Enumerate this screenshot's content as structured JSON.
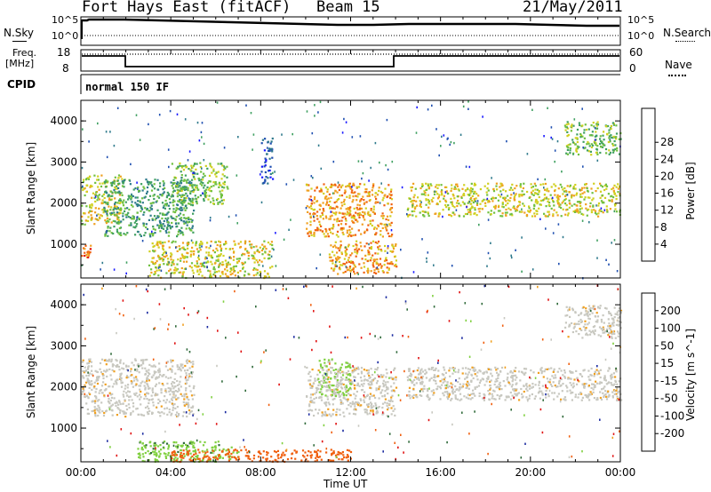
{
  "header": {
    "station": "Fort Hays East (fitACF)",
    "beam": "Beam 15",
    "date": "21/May/2011"
  },
  "top_panels": {
    "nsky_label": "N.Sky",
    "nsky_ticks": [
      "10^5",
      "10^0"
    ],
    "nsearch_label": "N.Search",
    "nsearch_ticks": [
      "10^5",
      "10^0"
    ],
    "freq_label_line1": "Freq.",
    "freq_label_line2": "[MHz]",
    "freq_ticks": [
      "18",
      "8"
    ],
    "nave_label": "Nave",
    "nave_ticks": [
      "60",
      "0"
    ],
    "cpid_label": "CPID",
    "cpid_value": "normal 150 IF"
  },
  "colors": {
    "power_scale": [
      "#1a1aff",
      "#1f4fb0",
      "#2f7a8c",
      "#3fa060",
      "#70c040",
      "#d0d020",
      "#f0a020",
      "#f06010",
      "#e01010"
    ],
    "velocity_scale": [
      "#1a2aa0",
      "#2f6a3a",
      "#48a848",
      "#80d040",
      "#c8c8c0",
      "#c8c8c0",
      "#f0a020",
      "#f06010",
      "#e01010"
    ]
  },
  "chart_data": [
    {
      "type": "heatmap",
      "title": "Power",
      "ylabel": "Slant Range [km]",
      "ylim": [
        180,
        4500
      ],
      "yticks": [
        "1000",
        "2000",
        "3000",
        "4000"
      ],
      "xlim": [
        "00:00",
        "24:00"
      ],
      "colorbar_label": "Power [dB]",
      "colorbar_ticks": [
        "4",
        "8",
        "12",
        "16",
        "20",
        "24",
        "28"
      ],
      "regions": [
        {
          "t0": 0.0,
          "t1": 1.8,
          "r0": 1500,
          "r1": 2700,
          "level": 20
        },
        {
          "t0": 0.0,
          "t1": 0.4,
          "r0": 700,
          "r1": 1000,
          "level": 28
        },
        {
          "t0": 1.0,
          "t1": 5.0,
          "r0": 1200,
          "r1": 2600,
          "level": 12
        },
        {
          "t0": 3.0,
          "t1": 8.5,
          "r0": 200,
          "r1": 1100,
          "level": 20
        },
        {
          "t0": 4.0,
          "t1": 6.5,
          "r0": 2000,
          "r1": 3000,
          "level": 16
        },
        {
          "t0": 8.0,
          "t1": 8.5,
          "r0": 2500,
          "r1": 3600,
          "level": 4
        },
        {
          "t0": 10.0,
          "t1": 13.8,
          "r0": 1200,
          "r1": 2500,
          "level": 24
        },
        {
          "t0": 11.0,
          "t1": 14.0,
          "r0": 300,
          "r1": 1100,
          "level": 24
        },
        {
          "t0": 14.5,
          "t1": 24.0,
          "r0": 1700,
          "r1": 2500,
          "level": 20
        },
        {
          "t0": 21.5,
          "t1": 24.0,
          "r0": 3200,
          "r1": 4000,
          "level": 16
        }
      ],
      "xticks": [
        "00:00",
        "04:00",
        "08:00",
        "12:00",
        "16:00",
        "20:00",
        "00:00"
      ]
    },
    {
      "type": "heatmap",
      "title": "Velocity",
      "ylabel": "Slant Range [km]",
      "ylim": [
        180,
        4500
      ],
      "yticks": [
        "1000",
        "2000",
        "3000",
        "4000"
      ],
      "xlim": [
        "00:00",
        "24:00"
      ],
      "xlabel": "Time UT",
      "xticks": [
        "00:00",
        "04:00",
        "08:00",
        "12:00",
        "16:00",
        "20:00",
        "00:00"
      ],
      "colorbar_label": "Velocity [m s^-1]",
      "colorbar_ticks": [
        "200",
        "100",
        "50",
        "15",
        "-15",
        "-50",
        "-100",
        "-200"
      ],
      "regions": [
        {
          "t0": 0.0,
          "t1": 5.0,
          "r0": 1300,
          "r1": 2700,
          "level": 0
        },
        {
          "t0": 2.5,
          "t1": 7.0,
          "r0": 200,
          "r1": 700,
          "level": 60
        },
        {
          "t0": 4.0,
          "t1": 12.0,
          "r0": 200,
          "r1": 500,
          "level": -80
        },
        {
          "t0": 10.0,
          "t1": 14.0,
          "r0": 1300,
          "r1": 2500,
          "level": 0
        },
        {
          "t0": 10.5,
          "t1": 12.0,
          "r0": 1800,
          "r1": 2700,
          "level": 40
        },
        {
          "t0": 14.5,
          "t1": 24.0,
          "r0": 1700,
          "r1": 2500,
          "level": 0
        },
        {
          "t0": 21.5,
          "t1": 24.0,
          "r0": 3200,
          "r1": 4000,
          "level": 0
        }
      ]
    }
  ]
}
